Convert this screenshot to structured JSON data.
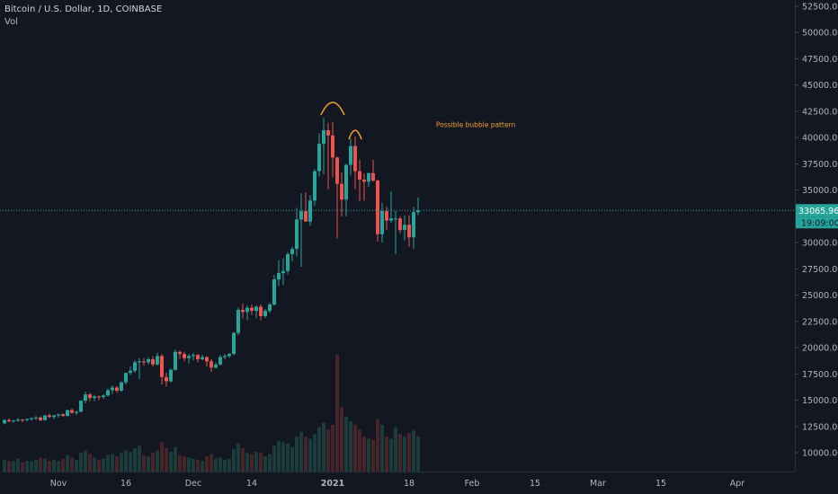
{
  "header": {
    "symbol": "Bitcoin / U.S. Dollar, 1D, COINBASE",
    "indicator": "Vol"
  },
  "price_label": "33065.96",
  "countdown_label": "19:09:00",
  "colors": {
    "background": "#131722",
    "up": "#26a69a",
    "down": "#ef5350",
    "annotation": "#f0a02a",
    "axis_text": "#b2b5be",
    "price_line": "#26a69a"
  },
  "chart_data": {
    "type": "candlestick",
    "title": "Bitcoin / U.S. Dollar, 1D, COINBASE",
    "x_range": [
      "2020-10-20",
      "2021-04-14"
    ],
    "y_range": [
      8000,
      53500
    ],
    "x_ticks": [
      {
        "date": "2020-11-01",
        "label": "Nov"
      },
      {
        "date": "2020-11-16",
        "label": "16"
      },
      {
        "date": "2020-12-01",
        "label": "Dec"
      },
      {
        "date": "2020-12-14",
        "label": "14"
      },
      {
        "date": "2021-01-01",
        "label": "2021"
      },
      {
        "date": "2021-01-18",
        "label": "18"
      },
      {
        "date": "2021-02-01",
        "label": "Feb"
      },
      {
        "date": "2021-02-15",
        "label": "15"
      },
      {
        "date": "2021-03-01",
        "label": "Mar"
      },
      {
        "date": "2021-03-15",
        "label": "15"
      },
      {
        "date": "2021-04-01",
        "label": "Apr"
      }
    ],
    "y_ticks": [
      {
        "value": 10000,
        "label": "10000.00"
      },
      {
        "value": 12500,
        "label": "12500.00"
      },
      {
        "value": 15000,
        "label": "15000.00"
      },
      {
        "value": 17500,
        "label": "17500.00"
      },
      {
        "value": 20000,
        "label": "20000.00"
      },
      {
        "value": 22500,
        "label": "22500.00"
      },
      {
        "value": 25000,
        "label": "25000.00"
      },
      {
        "value": 27500,
        "label": "27500.00"
      },
      {
        "value": 30000,
        "label": "30000.00"
      },
      {
        "value": 32500,
        "label": "32500.00"
      },
      {
        "value": 35000,
        "label": "35000.00"
      },
      {
        "value": 37500,
        "label": "37500.00"
      },
      {
        "value": 40000,
        "label": "40000.00"
      },
      {
        "value": 42500,
        "label": "42500.00"
      },
      {
        "value": 45000,
        "label": "45000.00"
      },
      {
        "value": 47500,
        "label": "47500.00"
      },
      {
        "value": 50000,
        "label": "50000.00"
      },
      {
        "value": 52500,
        "label": "52500.00"
      }
    ],
    "last_price": 33065.96,
    "start_date": "2020-10-20",
    "ohlc": [
      [
        12800,
        13200,
        12700,
        13100
      ],
      [
        13100,
        13250,
        12900,
        13000
      ],
      [
        13000,
        13100,
        12850,
        13050
      ],
      [
        13050,
        13300,
        12950,
        13150
      ],
      [
        13150,
        13200,
        12900,
        13100
      ],
      [
        13100,
        13250,
        13000,
        13200
      ],
      [
        13200,
        13350,
        13050,
        13300
      ],
      [
        13300,
        13500,
        13100,
        13350
      ],
      [
        13350,
        13450,
        13000,
        13100
      ],
      [
        13100,
        13600,
        13050,
        13550
      ],
      [
        13550,
        13700,
        13300,
        13400
      ],
      [
        13400,
        13600,
        13200,
        13550
      ],
      [
        13550,
        13700,
        13350,
        13650
      ],
      [
        13650,
        13750,
        13400,
        13500
      ],
      [
        13500,
        14100,
        13450,
        14050
      ],
      [
        14050,
        14200,
        13700,
        13800
      ],
      [
        13800,
        14000,
        13600,
        13900
      ],
      [
        13900,
        15000,
        13850,
        14950
      ],
      [
        14950,
        15800,
        14700,
        15550
      ],
      [
        15550,
        15700,
        14900,
        15200
      ],
      [
        15200,
        15500,
        14900,
        15350
      ],
      [
        15350,
        15450,
        15000,
        15300
      ],
      [
        15300,
        15550,
        15100,
        15450
      ],
      [
        15450,
        16100,
        15350,
        15950
      ],
      [
        15950,
        16400,
        15600,
        16200
      ],
      [
        16200,
        16350,
        15700,
        15900
      ],
      [
        15900,
        16800,
        15800,
        16700
      ],
      [
        16700,
        17500,
        16500,
        17600
      ],
      [
        17600,
        18200,
        17400,
        17800
      ],
      [
        17800,
        18800,
        17600,
        18600
      ],
      [
        18600,
        19000,
        17000,
        18700
      ],
      [
        18700,
        19000,
        18300,
        18600
      ],
      [
        18600,
        19100,
        18400,
        18900
      ],
      [
        18900,
        19200,
        18200,
        18400
      ],
      [
        18400,
        19500,
        18300,
        19200
      ],
      [
        19200,
        19400,
        16500,
        17200
      ],
      [
        17200,
        17600,
        16300,
        16800
      ],
      [
        16800,
        18000,
        16700,
        17900
      ],
      [
        17900,
        19800,
        17800,
        19600
      ],
      [
        19600,
        19700,
        18900,
        19400
      ],
      [
        19400,
        19600,
        18700,
        19000
      ],
      [
        19000,
        19400,
        18500,
        19200
      ],
      [
        19200,
        19500,
        18800,
        19300
      ],
      [
        19300,
        19400,
        18600,
        18900
      ],
      [
        18900,
        19300,
        18800,
        19100
      ],
      [
        19100,
        19200,
        18200,
        18700
      ],
      [
        18700,
        18900,
        17700,
        18100
      ],
      [
        18100,
        18600,
        18000,
        18400
      ],
      [
        18400,
        19300,
        18300,
        19100
      ],
      [
        19100,
        19400,
        18900,
        19200
      ],
      [
        19200,
        19500,
        19000,
        19400
      ],
      [
        19400,
        21500,
        19300,
        21400
      ],
      [
        21400,
        23800,
        21200,
        23600
      ],
      [
        23600,
        24200,
        22800,
        23400
      ],
      [
        23400,
        24000,
        22600,
        23800
      ],
      [
        23800,
        24100,
        23100,
        23500
      ],
      [
        23500,
        24000,
        22800,
        23900
      ],
      [
        23900,
        24100,
        22600,
        23000
      ],
      [
        23000,
        23700,
        22800,
        23500
      ],
      [
        23500,
        24300,
        23300,
        24100
      ],
      [
        24100,
        26900,
        24000,
        26500
      ],
      [
        26500,
        28300,
        25900,
        27100
      ],
      [
        27100,
        28500,
        26000,
        27300
      ],
      [
        27300,
        29100,
        27000,
        28900
      ],
      [
        28900,
        29600,
        28200,
        29400
      ],
      [
        29400,
        33300,
        28700,
        32200
      ],
      [
        32200,
        34700,
        27700,
        33000
      ],
      [
        33000,
        34800,
        32100,
        32000
      ],
      [
        32000,
        34500,
        31600,
        34000
      ],
      [
        34000,
        37000,
        33500,
        36800
      ],
      [
        36800,
        40400,
        36300,
        39400
      ],
      [
        39400,
        41900,
        36500,
        40700
      ],
      [
        40700,
        41400,
        35100,
        40200
      ],
      [
        40200,
        41500,
        36200,
        38100
      ],
      [
        38100,
        38200,
        30400,
        35600
      ],
      [
        35600,
        36700,
        32500,
        34100
      ],
      [
        34100,
        37500,
        32500,
        37400
      ],
      [
        37400,
        39900,
        36400,
        39200
      ],
      [
        39200,
        40100,
        35100,
        36800
      ],
      [
        36800,
        37900,
        33900,
        36000
      ],
      [
        36000,
        36600,
        34000,
        35800
      ],
      [
        35800,
        36700,
        35300,
        36600
      ],
      [
        36600,
        37900,
        35800,
        35900
      ],
      [
        35900,
        36000,
        30100,
        30800
      ],
      [
        30800,
        33800,
        30000,
        33000
      ],
      [
        33000,
        33400,
        31200,
        32100
      ],
      [
        32100,
        34900,
        31900,
        32300
      ],
      [
        32300,
        33000,
        28900,
        32300
      ],
      [
        32300,
        32500,
        30900,
        31200
      ],
      [
        31200,
        32600,
        30200,
        31700
      ],
      [
        31700,
        32600,
        29600,
        30500
      ],
      [
        30500,
        33400,
        29400,
        32900
      ],
      [
        32900,
        34300,
        32600,
        33066
      ]
    ],
    "volume": [
      0.1,
      0.09,
      0.09,
      0.11,
      0.08,
      0.09,
      0.09,
      0.1,
      0.12,
      0.11,
      0.09,
      0.1,
      0.09,
      0.11,
      0.14,
      0.12,
      0.1,
      0.16,
      0.18,
      0.15,
      0.12,
      0.1,
      0.11,
      0.14,
      0.15,
      0.13,
      0.16,
      0.18,
      0.17,
      0.2,
      0.22,
      0.14,
      0.13,
      0.16,
      0.18,
      0.25,
      0.2,
      0.17,
      0.21,
      0.14,
      0.13,
      0.12,
      0.11,
      0.1,
      0.09,
      0.13,
      0.15,
      0.11,
      0.12,
      0.1,
      0.11,
      0.19,
      0.24,
      0.2,
      0.16,
      0.15,
      0.17,
      0.16,
      0.13,
      0.15,
      0.22,
      0.26,
      0.25,
      0.24,
      0.21,
      0.3,
      0.34,
      0.3,
      0.28,
      0.32,
      0.38,
      0.42,
      0.36,
      0.4,
      1.0,
      0.55,
      0.47,
      0.43,
      0.4,
      0.36,
      0.3,
      0.28,
      0.27,
      0.45,
      0.4,
      0.3,
      0.28,
      0.38,
      0.32,
      0.3,
      0.33,
      0.35,
      0.3
    ]
  },
  "annotations": {
    "text": "Possible bubble pattern"
  }
}
